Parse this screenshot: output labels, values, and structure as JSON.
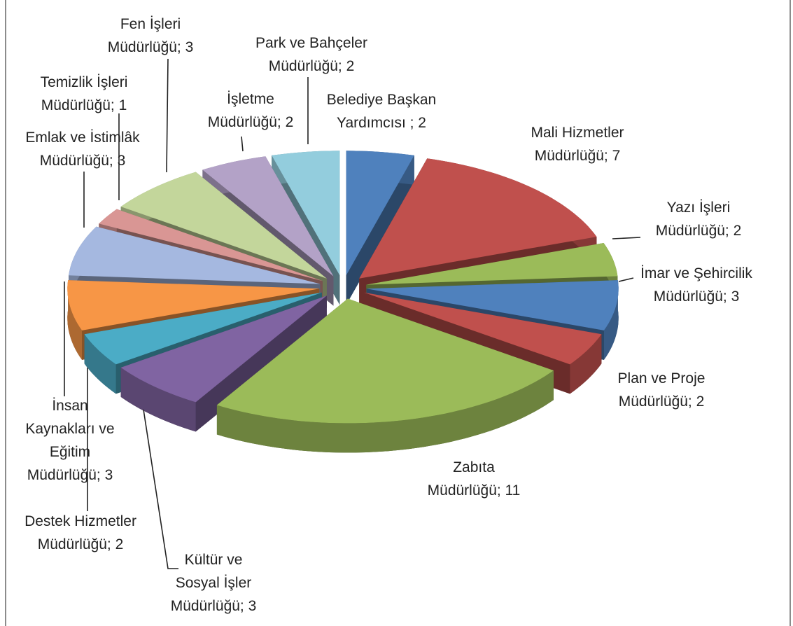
{
  "chart_data": {
    "type": "pie3d",
    "values": [
      2,
      7,
      2,
      3,
      2,
      11,
      3,
      2,
      3,
      3,
      1,
      3,
      2,
      2
    ],
    "value_labels": [
      "Belediye Başkan\nYardımcısı ; 2",
      "Mali Hizmetler\nMüdürlüğü; 7",
      "Yazı İşleri\nMüdürlüğü; 2",
      "İmar ve Şehircilik\nMüdürlüğü; 3",
      "Plan ve Proje\nMüdürlüğü; 2",
      "Zabıta\nMüdürlüğü; 11",
      "Kültür ve\nSosyal İşler\nMüdürlüğü; 3",
      "Destek Hizmetler\nMüdürlüğü; 2",
      "İnsan\nKaynakları ve\nEğitim\nMüdürlüğü; 3",
      "Emlak ve İstimlâk\nMüdürlüğü; 3",
      "Temizlik İşleri\nMüdürlüğü; 1",
      "Fen İşleri\nMüdürlüğü; 3",
      "İşletme\nMüdürlüğü; 2",
      "Park ve Bahçeler\nMüdürlüğü; 2"
    ],
    "colors": [
      "#4f81bd",
      "#c0504d",
      "#9bbb59",
      "#4f81bd",
      "#c0504d",
      "#9bbb59",
      "#8064a2",
      "#4bacc6",
      "#f79646",
      "#a5b8e0",
      "#d99694",
      "#c3d69b",
      "#b3a2c7",
      "#93cddd"
    ]
  }
}
